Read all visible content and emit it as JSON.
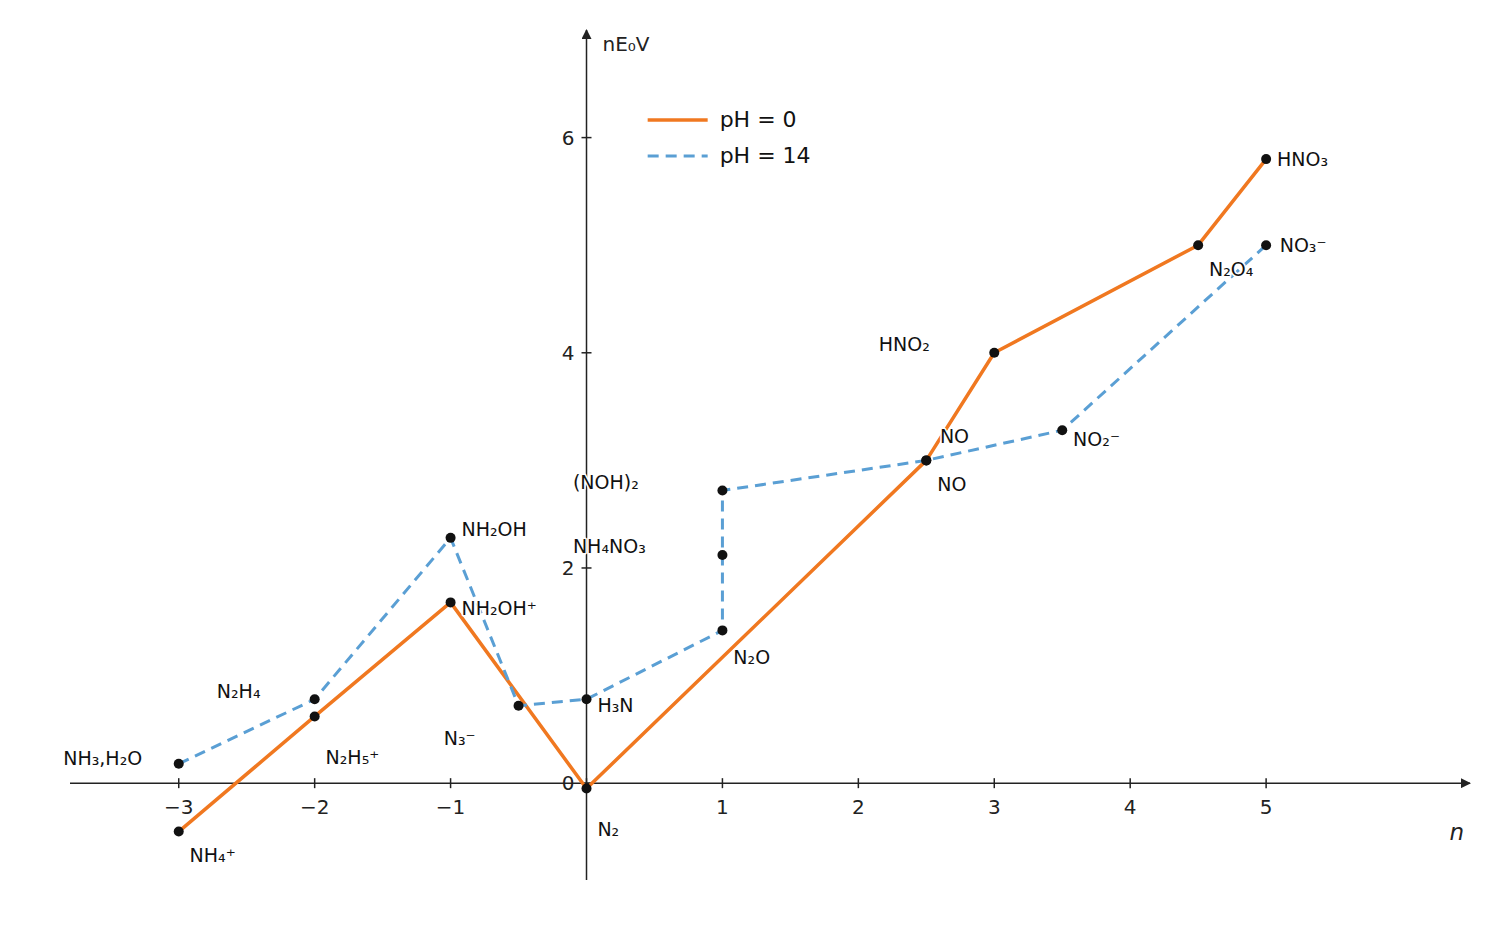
{
  "chart_data": {
    "type": "line",
    "xlabel": "n",
    "ylabel": "nE₀V",
    "xlim": [
      -3.8,
      6.5
    ],
    "ylim": [
      -0.9,
      7.0
    ],
    "xticks": [
      -3,
      -2,
      -1,
      {
        "value": 0,
        "label": null
      },
      1,
      2,
      3,
      4,
      5
    ],
    "yticks": [
      0,
      2,
      4,
      6
    ],
    "marker": "circle",
    "series": [
      {
        "name": "pH = 0",
        "color": "#f07820",
        "line_style": "solid",
        "x": [
          -3,
          -2,
          -1,
          0,
          2.5,
          3,
          4.5,
          5
        ],
        "values": [
          -0.45,
          0.62,
          1.68,
          -0.05,
          3.0,
          4.0,
          5.0,
          5.8
        ],
        "point_labels": [
          "NH₄⁺",
          "N₂H₅⁺",
          "NH₂OH⁺",
          "N₂",
          "NO",
          "HNO₂",
          "N₂O₄",
          "HNO₃"
        ]
      },
      {
        "name": "pH = 14",
        "color": "#5a9fd4",
        "line_style": "dashed",
        "x": [
          -3,
          -2,
          -1,
          -0.5,
          0,
          1,
          1,
          1,
          2.5,
          3.5,
          5
        ],
        "values": [
          0.18,
          0.78,
          2.28,
          0.72,
          0.78,
          1.42,
          2.12,
          2.72,
          3.0,
          3.28,
          5.0
        ],
        "point_labels": [
          "NH₃,H₂O",
          "N₂H₄",
          "NH₂OH",
          "N₃⁻",
          "H₃N",
          "N₂O",
          "NH₄NO₃",
          "(NOH)₂",
          "NO",
          "NO₂⁻",
          "NO₃⁻"
        ]
      }
    ]
  }
}
